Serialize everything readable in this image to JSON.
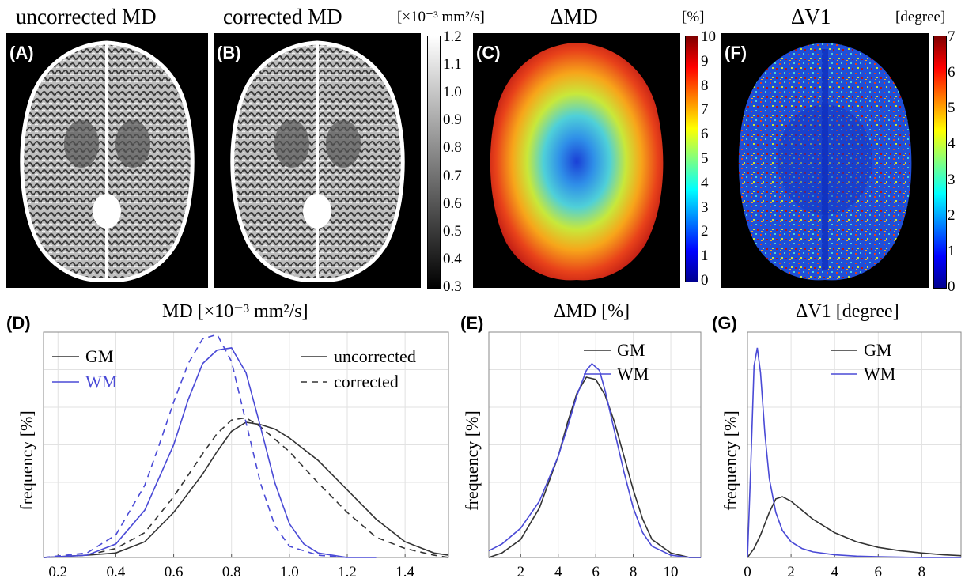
{
  "maps": {
    "a": {
      "label": "(A)",
      "title": "uncorrected MD"
    },
    "b": {
      "label": "(B)",
      "title": "corrected MD",
      "unit": "[×10⁻³ mm²/s]"
    },
    "c": {
      "label": "(C)",
      "title": "ΔMD",
      "unit": "[%]"
    },
    "f": {
      "label": "(F)",
      "title": "ΔV1",
      "unit": "[degree]"
    }
  },
  "colorbars": {
    "md": {
      "colormap": "gray",
      "ticks": [
        "1.2",
        "1.1",
        "1.0",
        "0.9",
        "0.8",
        "0.7",
        "0.6",
        "0.5",
        "0.4",
        "0.3"
      ]
    },
    "dmd": {
      "colormap": "jet",
      "ticks": [
        "10",
        "9",
        "8",
        "7",
        "6",
        "5",
        "4",
        "3",
        "2",
        "1",
        "0"
      ]
    },
    "dv1": {
      "colormap": "jet",
      "ticks": [
        "7",
        "6",
        "5",
        "4",
        "3",
        "2",
        "1",
        "0"
      ]
    }
  },
  "colors": {
    "gm": "#333333",
    "wm": "#4a4ad6",
    "grid": "#e2e2e2",
    "map_background": "#000000"
  },
  "chart_data": [
    {
      "type": "line",
      "label": "(D)",
      "title": "MD [×10⁻³ mm²/s]",
      "xlabel": "",
      "ylabel": "frequency [%]",
      "xlim": [
        0.15,
        1.55
      ],
      "ylim": [
        0,
        1
      ],
      "xticks": [
        0.2,
        0.4,
        0.6,
        0.8,
        1.0,
        1.2,
        1.4
      ],
      "xtick_labels": [
        "0.2",
        "0.4",
        "0.6",
        "0.8",
        "1.0",
        "1.2",
        "1.4"
      ],
      "grid": true,
      "legend": {
        "position": "top",
        "tissue": [
          "GM",
          "WM"
        ],
        "style": [
          "uncorrected",
          "corrected"
        ]
      },
      "series": [
        {
          "name": "GM",
          "variant": "uncorrected",
          "color": "#333333",
          "dash": "none",
          "x": [
            0.15,
            0.3,
            0.4,
            0.5,
            0.6,
            0.7,
            0.75,
            0.8,
            0.85,
            0.9,
            0.95,
            1.0,
            1.1,
            1.2,
            1.3,
            1.4,
            1.5,
            1.55
          ],
          "y": [
            0.0,
            0.01,
            0.02,
            0.07,
            0.2,
            0.37,
            0.47,
            0.56,
            0.6,
            0.59,
            0.57,
            0.53,
            0.43,
            0.3,
            0.17,
            0.07,
            0.02,
            0.01
          ]
        },
        {
          "name": "GM",
          "variant": "corrected",
          "color": "#333333",
          "dash": "8,6",
          "x": [
            0.15,
            0.3,
            0.4,
            0.5,
            0.6,
            0.7,
            0.75,
            0.8,
            0.85,
            0.9,
            1.0,
            1.1,
            1.2,
            1.3,
            1.4,
            1.5,
            1.55
          ],
          "y": [
            0.0,
            0.01,
            0.04,
            0.11,
            0.27,
            0.46,
            0.55,
            0.61,
            0.62,
            0.58,
            0.47,
            0.33,
            0.2,
            0.09,
            0.04,
            0.01,
            0.0
          ]
        },
        {
          "name": "WM",
          "variant": "uncorrected",
          "color": "#4a4ad6",
          "dash": "none",
          "x": [
            0.15,
            0.3,
            0.4,
            0.5,
            0.6,
            0.65,
            0.7,
            0.75,
            0.8,
            0.85,
            0.9,
            0.95,
            1.0,
            1.05,
            1.1,
            1.2,
            1.3
          ],
          "y": [
            0.0,
            0.01,
            0.06,
            0.21,
            0.5,
            0.7,
            0.86,
            0.92,
            0.93,
            0.82,
            0.58,
            0.33,
            0.15,
            0.06,
            0.02,
            0.0,
            0.0
          ]
        },
        {
          "name": "WM",
          "variant": "corrected",
          "color": "#4a4ad6",
          "dash": "8,6",
          "x": [
            0.15,
            0.3,
            0.4,
            0.5,
            0.55,
            0.6,
            0.65,
            0.7,
            0.75,
            0.8,
            0.85,
            0.9,
            0.95,
            1.0,
            1.1,
            1.2
          ],
          "y": [
            0.0,
            0.02,
            0.1,
            0.32,
            0.5,
            0.69,
            0.86,
            0.97,
            0.99,
            0.87,
            0.6,
            0.33,
            0.14,
            0.05,
            0.01,
            0.0
          ]
        }
      ]
    },
    {
      "type": "line",
      "label": "(E)",
      "title": "ΔMD [%]",
      "xlabel": "",
      "ylabel": "frequency [%]",
      "xlim": [
        0.3,
        11.6
      ],
      "ylim": [
        0,
        1
      ],
      "xticks": [
        2,
        4,
        6,
        8,
        10
      ],
      "xtick_labels": [
        "2",
        "4",
        "6",
        "8",
        "10"
      ],
      "grid": true,
      "legend": {
        "position": "top-right",
        "entries": [
          "GM",
          "WM"
        ]
      },
      "series": [
        {
          "name": "GM",
          "color": "#333333",
          "x": [
            0.3,
            1,
            2,
            3,
            4,
            4.5,
            5,
            5.5,
            6,
            6.5,
            7,
            7.5,
            8,
            8.5,
            9,
            10,
            11,
            11.6
          ],
          "y": [
            0.0,
            0.02,
            0.08,
            0.22,
            0.45,
            0.6,
            0.73,
            0.8,
            0.79,
            0.72,
            0.6,
            0.45,
            0.3,
            0.17,
            0.08,
            0.02,
            0.0,
            0.0
          ]
        },
        {
          "name": "WM",
          "color": "#4a4ad6",
          "x": [
            0.3,
            1,
            2,
            3,
            4,
            4.5,
            5,
            5.5,
            5.8,
            6.2,
            6.5,
            7,
            7.5,
            8,
            8.5,
            9,
            10,
            11,
            11.6
          ],
          "y": [
            0.03,
            0.06,
            0.13,
            0.25,
            0.45,
            0.58,
            0.72,
            0.83,
            0.86,
            0.83,
            0.74,
            0.56,
            0.38,
            0.22,
            0.11,
            0.05,
            0.01,
            0.0,
            0.0
          ]
        }
      ]
    },
    {
      "type": "line",
      "label": "(G)",
      "title": "ΔV1 [degree]",
      "xlabel": "",
      "ylabel": "frequency [%]",
      "xlim": [
        0,
        9.8
      ],
      "ylim": [
        0,
        1
      ],
      "xticks": [
        0,
        2,
        4,
        6,
        8
      ],
      "xtick_labels": [
        "0",
        "2",
        "4",
        "6",
        "8"
      ],
      "grid": true,
      "legend": {
        "position": "top-right",
        "entries": [
          "GM",
          "WM"
        ]
      },
      "series": [
        {
          "name": "GM",
          "color": "#333333",
          "x": [
            0,
            0.3,
            0.6,
            1.0,
            1.3,
            1.6,
            2.0,
            2.5,
            3.0,
            3.5,
            4,
            5,
            6,
            7,
            8,
            9,
            9.8
          ],
          "y": [
            0.0,
            0.04,
            0.1,
            0.2,
            0.26,
            0.27,
            0.25,
            0.21,
            0.17,
            0.14,
            0.11,
            0.07,
            0.045,
            0.03,
            0.02,
            0.012,
            0.008
          ]
        },
        {
          "name": "WM",
          "color": "#4a4ad6",
          "x": [
            0,
            0.15,
            0.3,
            0.45,
            0.6,
            0.8,
            1.0,
            1.3,
            1.6,
            2.0,
            2.5,
            3,
            4,
            5,
            6,
            8,
            9.8
          ],
          "y": [
            0.0,
            0.4,
            0.85,
            0.93,
            0.82,
            0.55,
            0.35,
            0.2,
            0.12,
            0.07,
            0.04,
            0.025,
            0.012,
            0.006,
            0.003,
            0.0,
            0.0
          ]
        }
      ]
    }
  ],
  "chart_titles": {
    "d": "MD [×10⁻³ mm²/s]",
    "e": "ΔMD [%]",
    "g": "ΔV1 [degree]"
  },
  "chart_labels": {
    "d": "(D)",
    "e": "(E)",
    "g": "(G)"
  },
  "legend": {
    "gm": "GM",
    "wm": "WM",
    "uncorrected": "uncorrected",
    "corrected": "corrected"
  },
  "ylabel": "frequency [%]"
}
